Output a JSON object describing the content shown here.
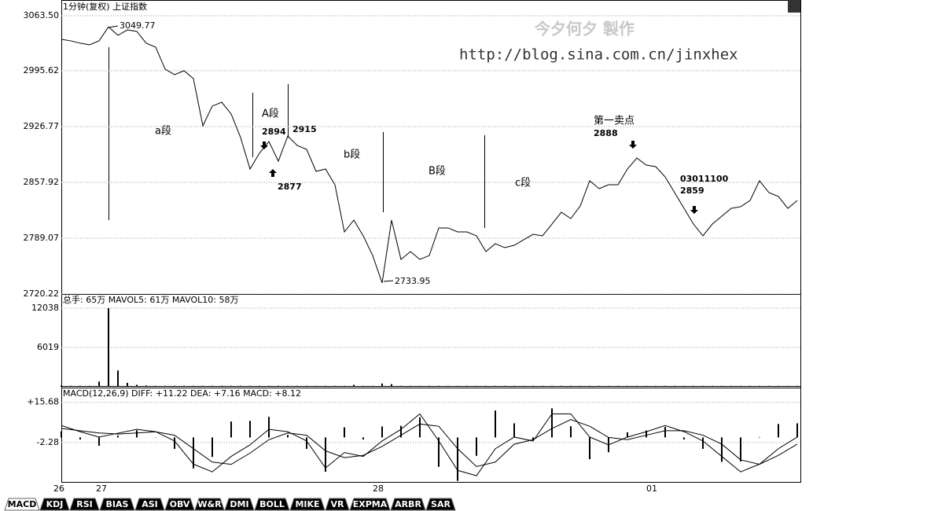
{
  "chart_data": [
    {
      "type": "line",
      "title": "1分钟(复权) 上证指数",
      "color": "#000000",
      "values": [
        3034.4,
        3032.5,
        3029.6,
        3027.6,
        3032.5,
        3049.77,
        3039.3,
        3046.0,
        3044.1,
        3029.6,
        3024.7,
        2997.6,
        2990.8,
        2995.6,
        2985.9,
        2927.7,
        2952.0,
        2956.8,
        2942.3,
        2913.2,
        2874.4,
        2894.0,
        2908.3,
        2884.1,
        2915.0,
        2903.5,
        2898.6,
        2871.5,
        2874.4,
        2855.0,
        2796.8,
        2811.4,
        2792.0,
        2767.7,
        2733.95,
        2811.4,
        2762.9,
        2772.6,
        2762.9,
        2767.7,
        2801.7,
        2801.7,
        2796.8,
        2796.8,
        2792.0,
        2772.6,
        2782.3,
        2777.4,
        2780.3,
        2787.1,
        2793.9,
        2792.0,
        2806.5,
        2821.1,
        2813.3,
        2828.8,
        2859.9,
        2850.2,
        2855.0,
        2855.0,
        2874.4,
        2888.0,
        2879.2,
        2877.3,
        2864.7,
        2845.3,
        2825.9,
        2806.5,
        2792.0,
        2806.5,
        2816.2,
        2825.9,
        2827.9,
        2835.6,
        2859.9,
        2845.3,
        2840.5,
        2825.9,
        2835.6
      ],
      "ylim": [
        2720.22,
        3075.1
      ],
      "yticks": [
        {
          "value": 3063.5,
          "label": "3063.50"
        },
        2995.62,
        2926.77,
        2857.92,
        2789.07,
        2720.22
      ],
      "grid": true,
      "annotations": [
        3049.77,
        2733.95,
        "a段",
        "A段",
        2894,
        2915,
        2877,
        "b段",
        "B段",
        "c段",
        "第一卖点",
        2888,
        "03011100",
        2859
      ]
    },
    {
      "type": "bar",
      "title": "总手: 65万 MAVOL5: 61万 MAVOL10: 58万",
      "color": "#000000",
      "values": [
        200,
        150,
        150,
        150,
        800,
        12038,
        2500,
        600,
        300,
        200,
        150,
        150,
        150,
        150,
        150,
        150,
        150,
        150,
        150,
        150,
        150,
        150,
        150,
        150,
        150,
        150,
        150,
        150,
        150,
        150,
        150,
        300,
        150,
        150,
        500,
        400,
        150,
        150,
        150,
        150,
        150,
        150,
        150,
        150,
        150,
        150,
        150,
        150,
        150,
        150,
        150,
        150,
        150,
        150,
        150,
        150,
        150,
        150,
        150,
        150,
        150,
        150,
        150,
        150,
        150,
        150,
        150,
        150,
        150,
        150,
        150,
        150,
        150,
        150,
        150,
        150,
        150,
        150,
        150
      ],
      "ylim": [
        0,
        14205
      ],
      "yticks": [
        12038,
        6019
      ],
      "grid": true
    },
    {
      "type": "macd",
      "title": "MACD(12,26,9) DIFF: +11.22 DEA: +7.16 MACD: +8.12",
      "series": [
        {
          "color": "#000000",
          "values": [
            5.33,
            2.57,
            0.16,
            1.88,
            3.61,
            2.57,
            -1.57,
            -11.92,
            -15.37,
            -8.47,
            -3.3,
            3.61,
            2.57,
            -1.57,
            -13.65,
            -6.75,
            -8.47,
            -1.57,
            3.61,
            10.51,
            -1.57,
            -14.68,
            -17.1,
            -5.02,
            0.16,
            -1.57,
            10.51,
            10.51,
            0.16,
            -3.3,
            0.16,
            2.57,
            5.33,
            2.57,
            -1.57,
            -8.47,
            -15.37,
            -11.92,
            -5.02,
            0.16
          ]
        },
        {
          "color": "#000000",
          "values": [
            4,
            3,
            2,
            1.5,
            2,
            2.5,
            1,
            -5,
            -11,
            -12,
            -7,
            -1,
            2,
            1,
            -6,
            -9,
            -8,
            -4,
            1,
            6,
            5,
            -5,
            -13,
            -11,
            -3,
            -1,
            4,
            8,
            5,
            0,
            -1,
            1,
            3,
            3,
            1,
            -3,
            -10,
            -12,
            -8,
            -3
          ]
        }
      ],
      "bars": {
        "color": "#000000",
        "values": [
          2.7,
          -0.9,
          -3.7,
          0.8,
          3.2,
          0.1,
          -5.1,
          -13.8,
          -8.7,
          7.1,
          7.4,
          9.2,
          1.1,
          -5.1,
          -15.3,
          4.5,
          -0.9,
          4.9,
          5.2,
          9.0,
          -13.1,
          -19.4,
          -8.2,
          12.0,
          6.3,
          -1.1,
          13.0,
          5.0,
          -9.7,
          -6.6,
          2.3,
          3.1,
          4.7,
          -0.9,
          -5.1,
          -10.9,
          -10.7,
          0.2,
          6.0,
          6.3
        ]
      },
      "ylim": [
        -20.2,
        21.9
      ],
      "yticks": [
        {
          "value": 15.68,
          "label": "+15.68"
        },
        -2.28
      ],
      "grid": true
    }
  ],
  "x_labels": [
    "26",
    "27",
    "28",
    "01"
  ],
  "watermark": [
    "今夕何夕  製作",
    "http://blog.sina.com.cn/jinxhex"
  ],
  "tabs": [
    "MACD",
    "KDJ",
    "RSI",
    "BIAS",
    "ASI",
    "OBV",
    "W&R",
    "DMI",
    "BOLL",
    "MIKE",
    "VR",
    "EXPMA",
    "ARBR",
    "SAR"
  ]
}
